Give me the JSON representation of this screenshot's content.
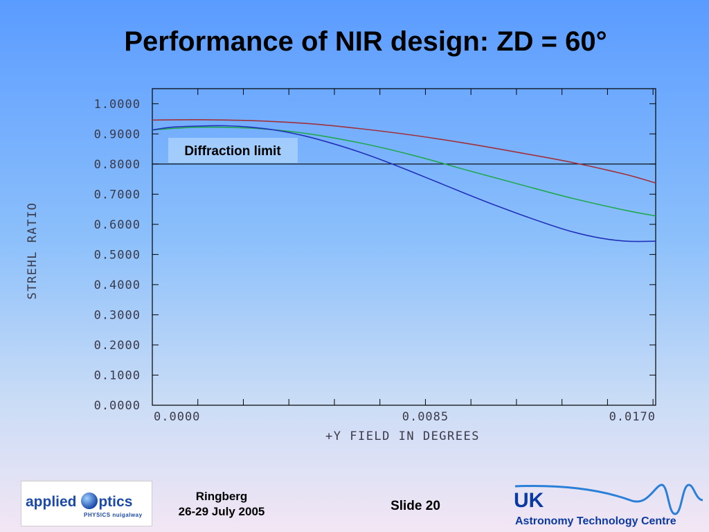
{
  "slide": {
    "title": "Performance of NIR design: ZD = 60°",
    "footer_venue_line1": "Ringberg",
    "footer_venue_line2": "26-29 July 2005",
    "footer_slide": "Slide 20",
    "logo_left_word_a": "applied",
    "logo_left_word_b": "ptics",
    "logo_left_sub": "PHYSICS nuigalway",
    "logo_right_uk": "UK",
    "logo_right_name": "Astronomy Technology Centre"
  },
  "chart_data": {
    "type": "line",
    "title": "",
    "xlabel": "+Y FIELD IN DEGREES",
    "ylabel": "STREHL RATIO",
    "xlim": [
      -0.0017,
      0.0171
    ],
    "ylim": [
      0,
      1.05
    ],
    "xticks": [
      0.0,
      0.0085,
      0.017
    ],
    "xtick_labels": [
      "0.0000",
      "0.0085",
      "0.0170"
    ],
    "yticks": [
      0.0,
      0.1,
      0.2,
      0.3,
      0.4,
      0.5,
      0.6,
      0.7,
      0.8,
      0.9,
      1.0
    ],
    "ytick_labels": [
      "0.0000",
      "0.1000",
      "0.2000",
      "0.3000",
      "0.4000",
      "0.5000",
      "0.6000",
      "0.7000",
      "0.8000",
      "0.9000",
      "1.0000"
    ],
    "grid": false,
    "reference_line": {
      "y": 0.8,
      "label": "Diffraction limit",
      "color": "#000000"
    },
    "series": [
      {
        "color": "#a0303a",
        "x": [
          -0.0017,
          0.0,
          0.002,
          0.004,
          0.006,
          0.008,
          0.01,
          0.012,
          0.014,
          0.016,
          0.0171
        ],
        "values": [
          0.946,
          0.947,
          0.944,
          0.935,
          0.918,
          0.896,
          0.869,
          0.838,
          0.805,
          0.765,
          0.737
        ]
      },
      {
        "color": "#20a850",
        "x": [
          -0.0017,
          0.0,
          0.002,
          0.004,
          0.006,
          0.008,
          0.01,
          0.012,
          0.014,
          0.016,
          0.0171
        ],
        "values": [
          0.913,
          0.922,
          0.919,
          0.902,
          0.871,
          0.83,
          0.781,
          0.733,
          0.686,
          0.646,
          0.628
        ]
      },
      {
        "color": "#2030b8",
        "x": [
          -0.0017,
          -0.001,
          0.0,
          0.001,
          0.002,
          0.003,
          0.004,
          0.005,
          0.006,
          0.007,
          0.008,
          0.009,
          0.01,
          0.011,
          0.012,
          0.013,
          0.014,
          0.015,
          0.016,
          0.0171
        ],
        "values": [
          0.913,
          0.922,
          0.926,
          0.927,
          0.922,
          0.911,
          0.893,
          0.869,
          0.841,
          0.809,
          0.774,
          0.738,
          0.702,
          0.667,
          0.634,
          0.603,
          0.575,
          0.555,
          0.544,
          0.544
        ]
      }
    ]
  }
}
